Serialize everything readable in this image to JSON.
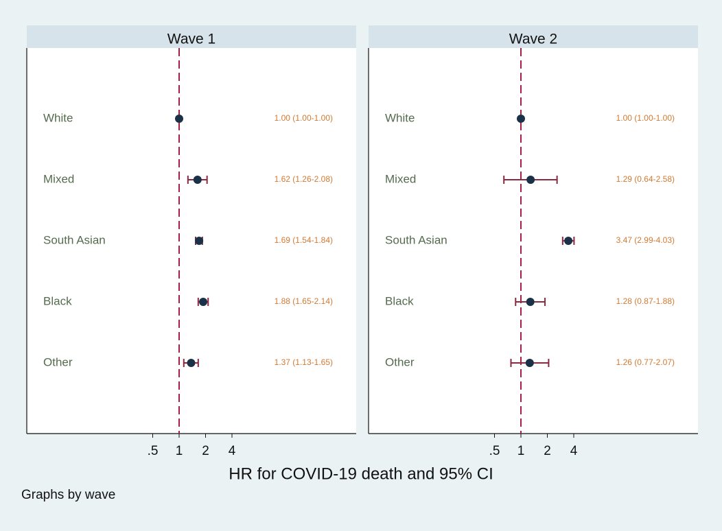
{
  "chart_data": {
    "type": "scatter",
    "subtype": "forest-plot-with-confidence-intervals",
    "xlabel": "HR for COVID-19 death and 95% CI",
    "x_scale": "log",
    "x_ticks": [
      0.5,
      1,
      2,
      4
    ],
    "x_tick_labels": [
      ".5",
      "1",
      "2",
      "4"
    ],
    "reference_line_x": 1,
    "footnote": "Graphs by wave",
    "colors": {
      "background": "#eaf2f3",
      "panel_header": "#d7e3ea",
      "marker": "#1a3147",
      "ci_line": "#8b2940",
      "reference_line": "#a31f46",
      "category_label": "#556b4d",
      "value_label": "#d17a33"
    },
    "panels": [
      {
        "title": "Wave 1",
        "rows": [
          {
            "label": "White",
            "hr": 1.0,
            "lo": 1.0,
            "hi": 1.0,
            "text": "1.00 (1.00-1.00)"
          },
          {
            "label": "Mixed",
            "hr": 1.62,
            "lo": 1.26,
            "hi": 2.08,
            "text": "1.62 (1.26-2.08)"
          },
          {
            "label": "South Asian",
            "hr": 1.69,
            "lo": 1.54,
            "hi": 1.84,
            "text": "1.69 (1.54-1.84)"
          },
          {
            "label": "Black",
            "hr": 1.88,
            "lo": 1.65,
            "hi": 2.14,
            "text": "1.88 (1.65-2.14)"
          },
          {
            "label": "Other",
            "hr": 1.37,
            "lo": 1.13,
            "hi": 1.65,
            "text": "1.37 (1.13-1.65)"
          }
        ]
      },
      {
        "title": "Wave 2",
        "rows": [
          {
            "label": "White",
            "hr": 1.0,
            "lo": 1.0,
            "hi": 1.0,
            "text": "1.00 (1.00-1.00)"
          },
          {
            "label": "Mixed",
            "hr": 1.29,
            "lo": 0.64,
            "hi": 2.58,
            "text": "1.29 (0.64-2.58)"
          },
          {
            "label": "South Asian",
            "hr": 3.47,
            "lo": 2.99,
            "hi": 4.03,
            "text": "3.47 (2.99-4.03)"
          },
          {
            "label": "Black",
            "hr": 1.28,
            "lo": 0.87,
            "hi": 1.88,
            "text": "1.28 (0.87-1.88)"
          },
          {
            "label": "Other",
            "hr": 1.26,
            "lo": 0.77,
            "hi": 2.07,
            "text": "1.26 (0.77-2.07)"
          }
        ]
      }
    ]
  }
}
